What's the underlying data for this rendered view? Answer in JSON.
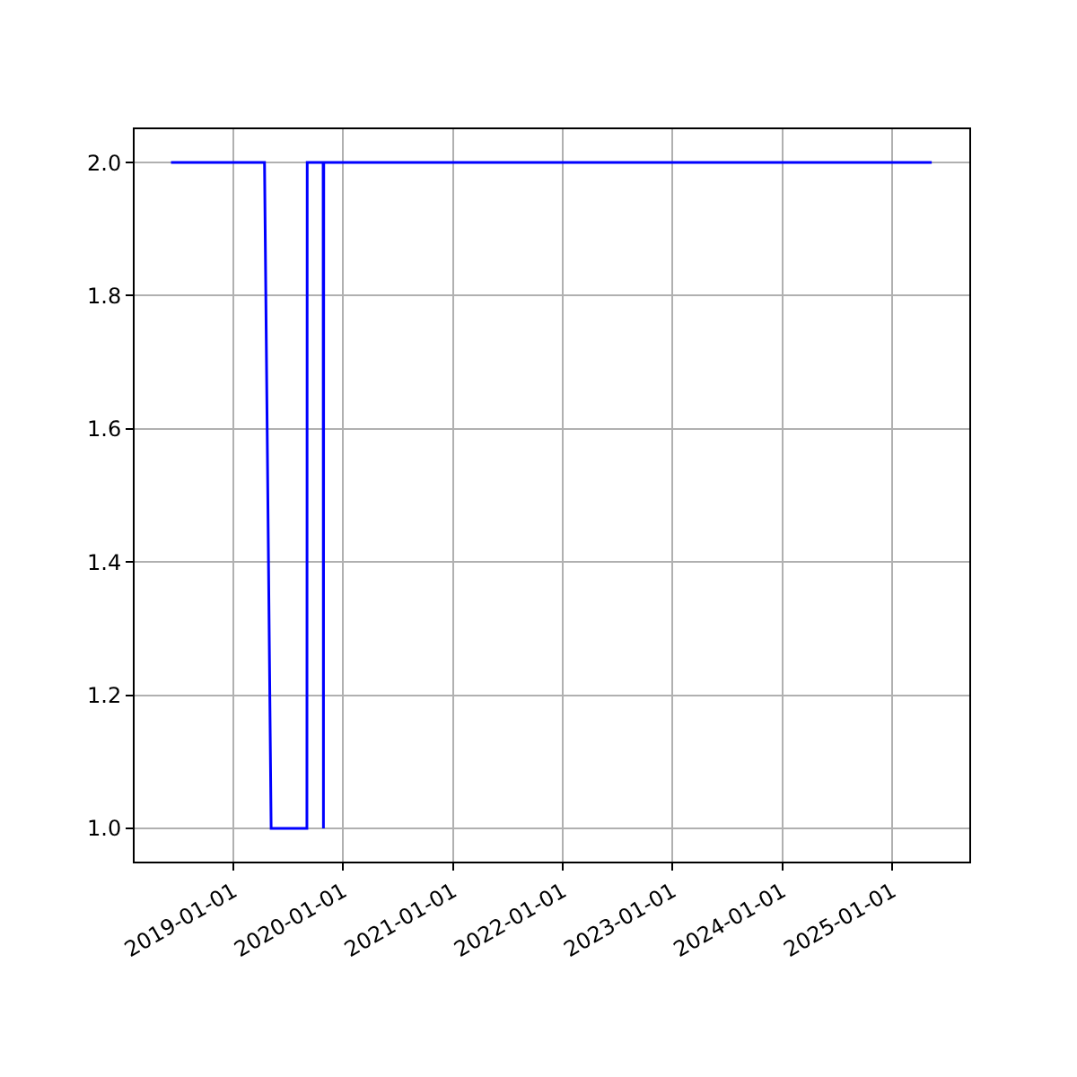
{
  "chart_data": {
    "type": "line",
    "x": [
      "2018-06-08",
      "2019-04-15",
      "2019-05-07",
      "2019-09-03",
      "2019-09-04",
      "2019-10-27",
      "2019-10-28",
      "2019-10-29",
      "2025-05-12"
    ],
    "series": [
      {
        "color": "#0000ff",
        "values": [
          2,
          2,
          1,
          1,
          2,
          2,
          1,
          2,
          2
        ]
      }
    ],
    "xlim": [
      "2018-02-07",
      "2025-09-14"
    ],
    "xticks": [
      "2019-01-01",
      "2020-01-01",
      "2021-01-01",
      "2022-01-01",
      "2023-01-01",
      "2024-01-01",
      "2025-01-01"
    ],
    "ylim": [
      0.95,
      2.05
    ],
    "yticks": [
      {
        "value": 1,
        "label": "1.0"
      },
      1.2,
      1.4,
      1.6,
      1.8,
      {
        "value": 2,
        "label": "2.0"
      }
    ],
    "grid": true,
    "marker": "none",
    "line_style": "solid"
  }
}
